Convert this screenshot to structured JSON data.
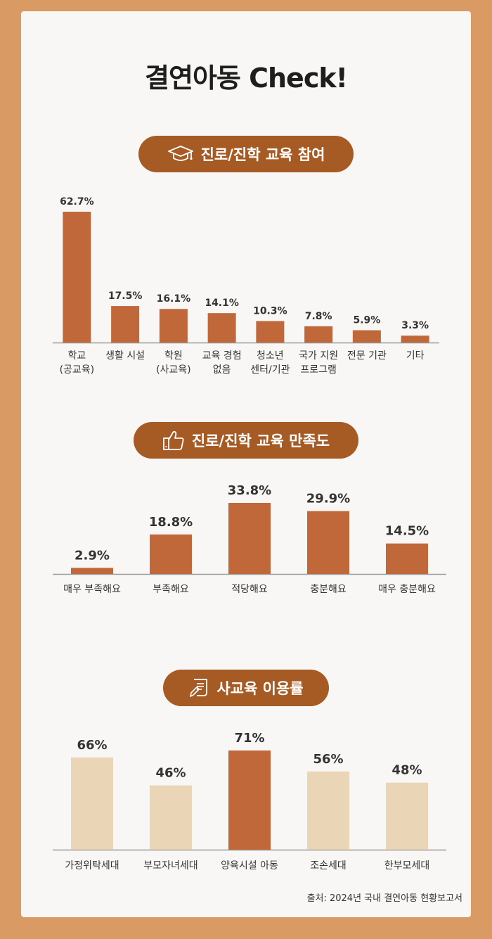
{
  "title": "결연아동 Check!",
  "source": "출처: 2024년 국내 결연아동 현황보고서",
  "colors": {
    "accent": "#a65a24",
    "bar": "#c0683a",
    "bar_light": "#ead5b6"
  },
  "sections": [
    {
      "heading": "진로/진학 교육 참여",
      "icon": "graduation-cap-icon"
    },
    {
      "heading": "진로/진학 교육 만족도",
      "icon": "thumbs-up-icon"
    },
    {
      "heading": "사교육 이용률",
      "icon": "document-pen-icon"
    }
  ],
  "chart_data": [
    {
      "type": "bar",
      "title": "진로/진학 교육 참여",
      "categories": [
        "학교\n(공교육)",
        "생활 시설",
        "학원\n(사교육)",
        "교육 경험\n없음",
        "청소년\n센터/기관",
        "국가 지원\n프로그램",
        "전문 기관",
        "기타"
      ],
      "values": [
        62.7,
        17.5,
        16.1,
        14.1,
        10.3,
        7.8,
        5.9,
        3.3
      ],
      "value_labels": [
        "62.7%",
        "17.5%",
        "16.1%",
        "14.1%",
        "10.3%",
        "7.8%",
        "5.9%",
        "3.3%"
      ],
      "unit": "%",
      "ylim": [
        0,
        62.7
      ],
      "grid": false,
      "highlight": [
        0,
        1,
        2,
        3,
        4,
        5,
        6,
        7
      ]
    },
    {
      "type": "bar",
      "title": "진로/진학 교육 만족도",
      "categories": [
        "매우 부족해요",
        "부족해요",
        "적당해요",
        "충분해요",
        "매우 충분해요"
      ],
      "values": [
        2.9,
        18.8,
        33.8,
        29.9,
        14.5
      ],
      "value_labels": [
        "2.9%",
        "18.8%",
        "33.8%",
        "29.9%",
        "14.5%"
      ],
      "unit": "%",
      "ylim": [
        0,
        33.8
      ],
      "grid": false,
      "highlight": [
        0,
        1,
        2,
        3,
        4
      ]
    },
    {
      "type": "bar",
      "title": "사교육 이용률",
      "categories": [
        "가정위탁세대",
        "부모자녀세대",
        "양육시설 아동",
        "조손세대",
        "한부모세대"
      ],
      "values": [
        66,
        46,
        71,
        56,
        48
      ],
      "value_labels": [
        "66%",
        "46%",
        "71%",
        "56%",
        "48%"
      ],
      "unit": "%",
      "ylim": [
        0,
        71
      ],
      "grid": false,
      "highlight": [
        2
      ]
    }
  ]
}
